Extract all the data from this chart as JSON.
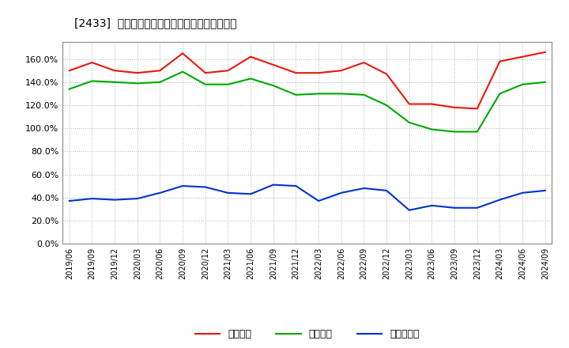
{
  "title": "[2433]  流動比率、当座比率、現預金比率の推移",
  "x_labels": [
    "2019/06",
    "2019/09",
    "2019/12",
    "2020/03",
    "2020/06",
    "2020/09",
    "2020/12",
    "2021/03",
    "2021/06",
    "2021/09",
    "2021/12",
    "2022/03",
    "2022/06",
    "2022/09",
    "2022/12",
    "2023/03",
    "2023/06",
    "2023/09",
    "2023/12",
    "2024/03",
    "2024/06",
    "2024/09"
  ],
  "ryudo": [
    150,
    157,
    150,
    148,
    150,
    165,
    148,
    150,
    162,
    155,
    148,
    148,
    150,
    157,
    147,
    121,
    121,
    118,
    117,
    158,
    162,
    166
  ],
  "toza": [
    134,
    141,
    140,
    139,
    140,
    149,
    138,
    138,
    143,
    137,
    129,
    130,
    130,
    129,
    120,
    105,
    99,
    97,
    97,
    130,
    138,
    140
  ],
  "genkin": [
    37,
    39,
    38,
    39,
    44,
    50,
    49,
    44,
    43,
    51,
    50,
    37,
    44,
    48,
    46,
    29,
    33,
    31,
    31,
    38,
    44,
    46
  ],
  "ryudo_color": "#e8180c",
  "toza_color": "#00a800",
  "genkin_color": "#0033cc",
  "ylim": [
    0,
    175
  ],
  "yticks": [
    0,
    20,
    40,
    60,
    80,
    100,
    120,
    140,
    160
  ],
  "background_color": "#ffffff",
  "grid_color": "#aaaaaa",
  "legend_label_ryudo": "流動比率",
  "legend_label_toza": "当座比率",
  "legend_label_genkin": "現預金比率"
}
